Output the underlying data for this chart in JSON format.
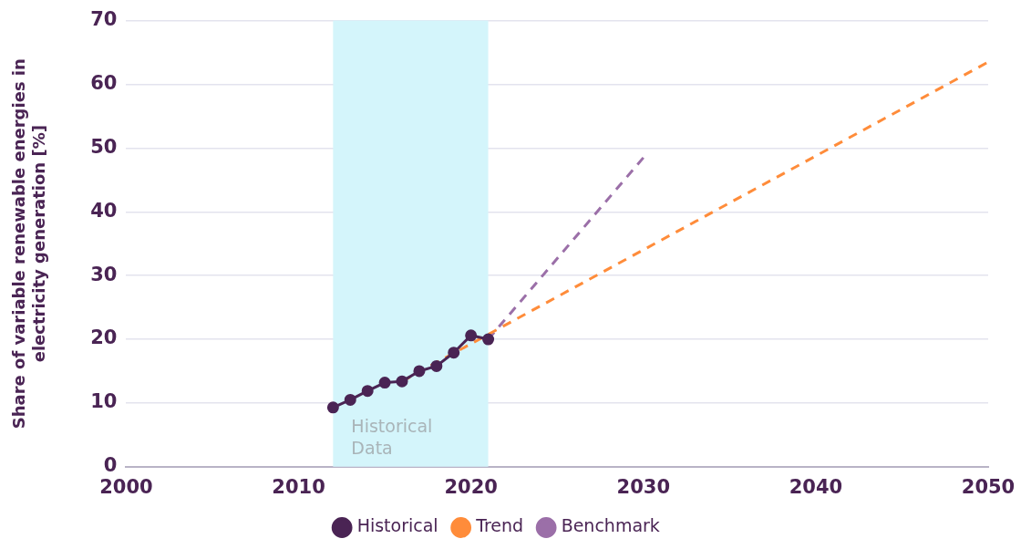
{
  "chart_data": {
    "type": "line",
    "ylabel": "Share of variable renewable energies in electricity generation [%]",
    "xlim": [
      2000,
      2050
    ],
    "xticks": [
      2000,
      2010,
      2020,
      2030,
      2040,
      2050
    ],
    "ylim": [
      0,
      70
    ],
    "yticks": [
      0,
      10,
      20,
      30,
      40,
      50,
      60,
      70
    ],
    "grid": "y",
    "legend": "bottom",
    "bands": [
      {
        "axis": "x",
        "from": 2012,
        "to": 2021,
        "label": "Historical Data",
        "color": "#d4f5fb"
      }
    ],
    "series": [
      {
        "name": "Historical",
        "color": "#4a2454",
        "marker": "circle",
        "line_style": "solid",
        "x": [
          2012,
          2013,
          2014,
          2015,
          2016,
          2017,
          2018,
          2019,
          2020,
          2021
        ],
        "values": [
          9.3,
          10.5,
          11.9,
          13.2,
          13.4,
          15.0,
          15.8,
          17.9,
          20.6,
          20.0
        ]
      },
      {
        "name": "Trend",
        "color": "#ff8c3a",
        "marker": "none",
        "line_style": "dashed",
        "x": [
          2016,
          2050
        ],
        "values": [
          13.4,
          63.5
        ]
      },
      {
        "name": "Benchmark",
        "color": "#9b6fa8",
        "marker": "none",
        "line_style": "dashed",
        "x": [
          2021,
          2030
        ],
        "values": [
          20.0,
          48.5
        ]
      }
    ]
  }
}
